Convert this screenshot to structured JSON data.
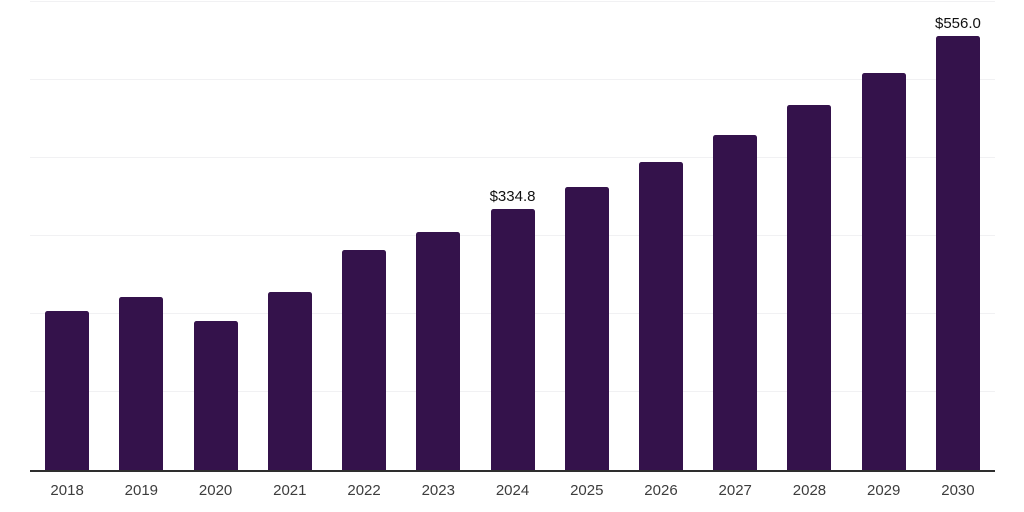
{
  "chart_data": {
    "type": "bar",
    "title": "",
    "xlabel": "",
    "ylabel": "",
    "categories": [
      "2018",
      "2019",
      "2020",
      "2021",
      "2022",
      "2023",
      "2024",
      "2025",
      "2026",
      "2027",
      "2028",
      "2029",
      "2030"
    ],
    "values": [
      204.0,
      221.2,
      191.2,
      228.3,
      282.0,
      305.0,
      334.8,
      362.6,
      394.5,
      429.4,
      467.4,
      508.8,
      556.0
    ],
    "point_labels": {
      "2024": "$334.8",
      "2030": "$556.0"
    },
    "ylim": [
      0,
      600
    ],
    "grid": true,
    "grid_step": 100,
    "legend": false,
    "colors": {
      "bar": "#34124B",
      "gridline": "#f1f1f3",
      "axis_line": "#2e2e2e",
      "tick_label": "#3d3d3d",
      "value_label": "#111111"
    }
  }
}
